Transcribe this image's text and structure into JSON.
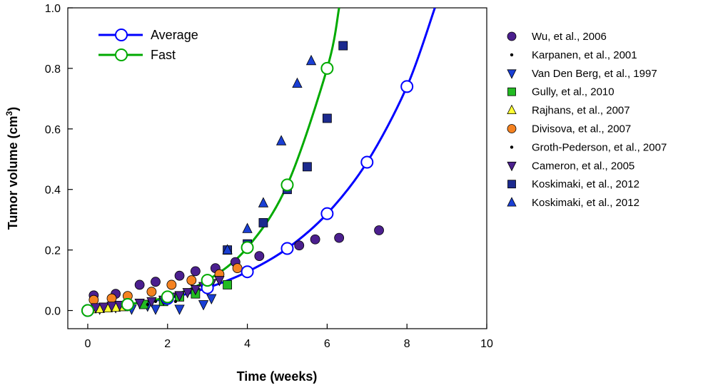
{
  "chart_data": {
    "type": "scatter",
    "xlabel": "Time (weeks)",
    "ylabel_main": "Tumor volume (cm",
    "ylabel_sup": "3",
    "ylabel_close": ")",
    "xlim": [
      -0.5,
      10
    ],
    "ylim": [
      -0.06,
      1.0
    ],
    "xticks": [
      0,
      2,
      4,
      6,
      8,
      10
    ],
    "xtick_labels": [
      "0",
      "2",
      "4",
      "6",
      "8",
      "10"
    ],
    "yticks": [
      0.0,
      0.2,
      0.4,
      0.6,
      0.8,
      1.0
    ],
    "ytick_labels": [
      "0.0",
      "0.2",
      "0.4",
      "0.6",
      "0.8",
      "1.0"
    ],
    "model_curves": [
      {
        "name": "Average",
        "color": "#0000ff",
        "x": [
          0,
          1,
          2,
          3,
          4,
          5,
          6,
          7,
          8
        ],
        "y": [
          0.0,
          0.02,
          0.04,
          0.075,
          0.128,
          0.205,
          0.32,
          0.49,
          0.74
        ],
        "extend_to": {
          "x": 8.7,
          "y": 1.0
        }
      },
      {
        "name": "Fast",
        "color": "#00aa00",
        "x": [
          0,
          1,
          2,
          3,
          4,
          5,
          6
        ],
        "y": [
          0.0,
          0.02,
          0.045,
          0.1,
          0.208,
          0.415,
          0.8
        ],
        "extend_to": {
          "x": 6.3,
          "y": 1.0
        }
      }
    ],
    "series": [
      {
        "name": "Wu, et al., 2006",
        "marker": "circle",
        "color": "#4b1f8e",
        "x": [
          0.15,
          0.7,
          1.3,
          1.7,
          2.3,
          2.7,
          3.2,
          3.7,
          4.3,
          5.3,
          5.7,
          6.3,
          7.3
        ],
        "y": [
          0.05,
          0.055,
          0.085,
          0.095,
          0.115,
          0.13,
          0.14,
          0.16,
          0.18,
          0.215,
          0.235,
          0.24,
          0.265
        ]
      },
      {
        "name": "Karpanen, et al., 2001",
        "marker": "dot",
        "color": "#000000",
        "x": [
          0.2,
          0.5,
          0.8,
          1.1,
          1.4,
          1.7,
          2.0
        ],
        "y": [
          0.012,
          0.015,
          0.018,
          0.022,
          0.026,
          0.03,
          0.035
        ]
      },
      {
        "name": "Van Den Berg, et al., 1997",
        "marker": "triangle-down",
        "color": "#1a3fd4",
        "x": [
          0.3,
          0.7,
          1.1,
          1.5,
          1.7,
          2.3,
          2.7,
          2.9,
          3.1
        ],
        "y": [
          0.005,
          0.01,
          0.005,
          0.015,
          0.005,
          0.005,
          0.06,
          0.02,
          0.04
        ]
      },
      {
        "name": "Gully, et al., 2010",
        "marker": "square",
        "color": "#22bb22",
        "x": [
          1.4,
          1.9,
          2.3,
          2.7,
          3.5
        ],
        "y": [
          0.02,
          0.03,
          0.045,
          0.055,
          0.085
        ]
      },
      {
        "name": "Rajhans, et al., 2007",
        "marker": "triangle-up",
        "color": "#ffff33",
        "x": [
          0.1,
          0.3,
          0.5,
          0.7,
          0.9
        ],
        "y": [
          0.005,
          0.006,
          0.008,
          0.01,
          0.012
        ]
      },
      {
        "name": "Divisova, et al., 2007",
        "marker": "circle",
        "color": "#f58220",
        "x": [
          0.15,
          0.6,
          1.0,
          1.6,
          2.1,
          2.6,
          3.3,
          3.75
        ],
        "y": [
          0.035,
          0.04,
          0.048,
          0.062,
          0.085,
          0.1,
          0.12,
          0.14
        ]
      },
      {
        "name": "Groth-Pederson, et al., 2007",
        "marker": "dot",
        "color": "#000000",
        "x": [
          0.4,
          0.9,
          1.5,
          2.2
        ],
        "y": [
          0.008,
          0.012,
          0.02,
          0.03
        ]
      },
      {
        "name": "Cameron, et al., 2005",
        "marker": "triangle-down",
        "color": "#4b1f8e",
        "x": [
          0.2,
          0.4,
          0.6,
          0.8,
          1.0,
          1.3,
          1.6,
          1.9,
          2.1,
          2.3,
          2.5,
          2.7,
          2.9,
          3.1,
          3.3
        ],
        "y": [
          0.01,
          0.012,
          0.015,
          0.018,
          0.02,
          0.025,
          0.03,
          0.035,
          0.045,
          0.05,
          0.06,
          0.07,
          0.08,
          0.09,
          0.1
        ]
      },
      {
        "name": "Koskimaki, et al., 2012",
        "marker": "square",
        "color": "#1c2a8e",
        "x": [
          3.5,
          4.0,
          4.4,
          5.0,
          5.5,
          6.0,
          6.4
        ],
        "y": [
          0.2,
          0.22,
          0.29,
          0.4,
          0.475,
          0.635,
          0.875
        ]
      },
      {
        "name": "Koskimaki, et al., 2012",
        "marker": "triangle-up",
        "color": "#1a3fd4",
        "x": [
          3.5,
          4.0,
          4.4,
          4.85,
          5.25,
          5.6
        ],
        "y": [
          0.2,
          0.27,
          0.355,
          0.56,
          0.75,
          0.825
        ]
      }
    ]
  }
}
